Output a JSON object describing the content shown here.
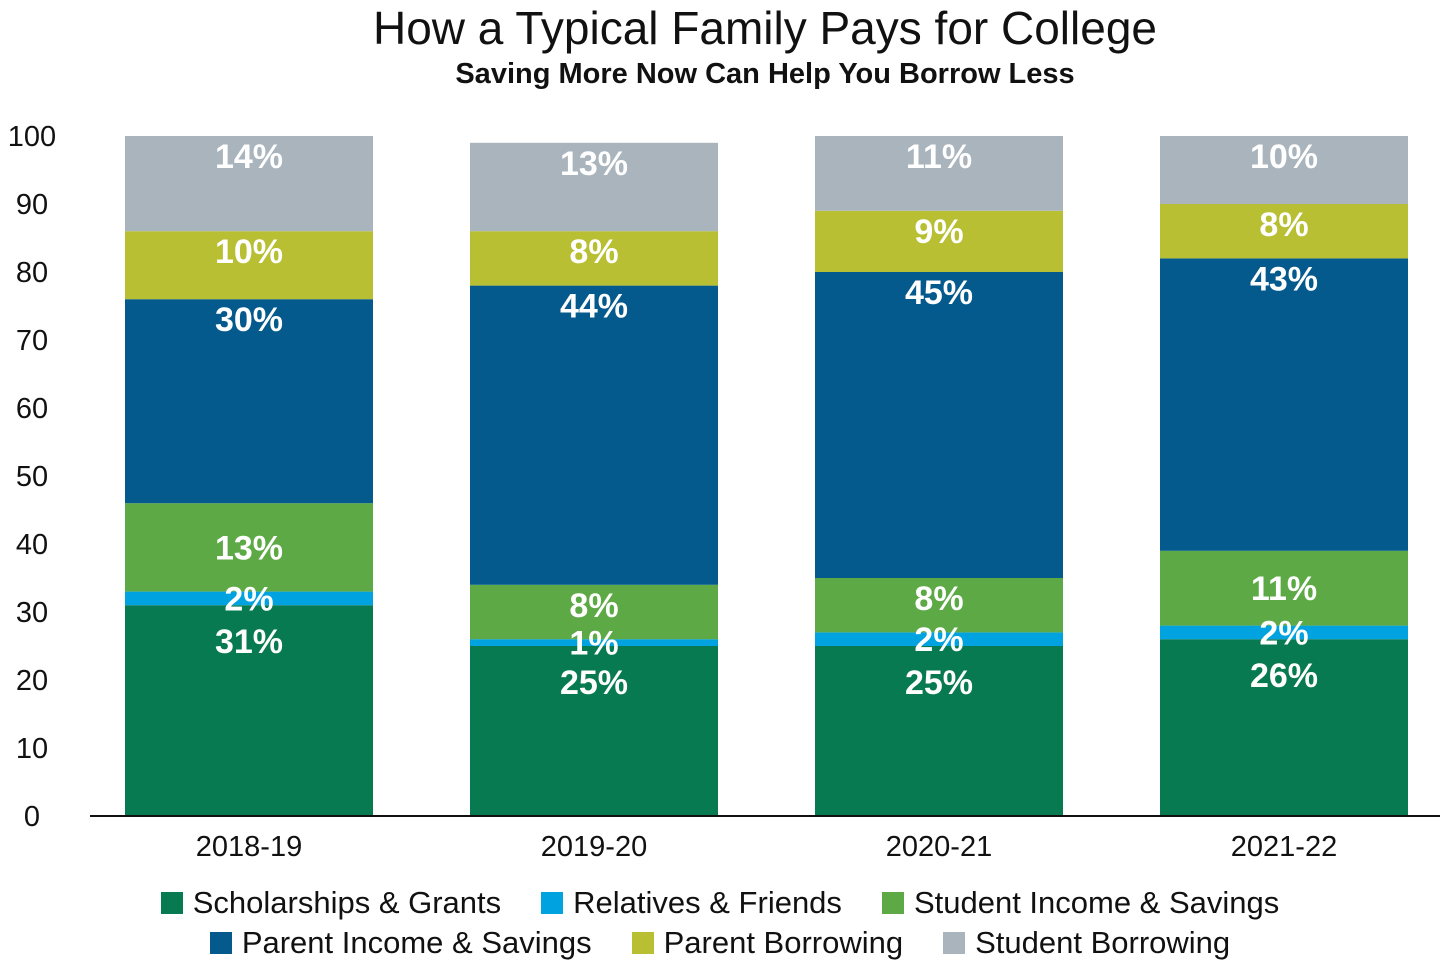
{
  "chart_data": {
    "type": "bar",
    "stacked": true,
    "title": "How a Typical Family Pays for College",
    "subtitle": "Saving More Now Can Help You Borrow Less",
    "categories": [
      "2018-19",
      "2019-20",
      "2020-21",
      "2021-22"
    ],
    "ylim": [
      0,
      100
    ],
    "yticks": [
      "0",
      "10",
      "20",
      "30",
      "40",
      "50",
      "60",
      "70",
      "80",
      "90",
      "100"
    ],
    "grid": false,
    "legend_position": "bottom",
    "series": [
      {
        "name": "Scholarships & Grants",
        "color": "#077a51",
        "values": [
          31,
          25,
          25,
          26
        ],
        "labels": [
          "31%",
          "25%",
          "25%",
          "26%"
        ]
      },
      {
        "name": "Relatives & Friends",
        "color": "#00a3e0",
        "values": [
          2,
          1,
          2,
          2
        ],
        "labels": [
          "2%",
          "1%",
          "2%",
          "2%"
        ]
      },
      {
        "name": "Student Income & Savings",
        "color": "#5da945",
        "values": [
          13,
          8,
          8,
          11
        ],
        "labels": [
          "13%",
          "8%",
          "8%",
          "11%"
        ]
      },
      {
        "name": "Parent Income & Savings",
        "color": "#045a8d",
        "values": [
          30,
          44,
          45,
          43
        ],
        "labels": [
          "30%",
          "44%",
          "45%",
          "43%"
        ]
      },
      {
        "name": "Parent Borrowing",
        "color": "#b8bf33",
        "values": [
          10,
          8,
          9,
          8
        ],
        "labels": [
          "10%",
          "8%",
          "9%",
          "8%"
        ]
      },
      {
        "name": "Student Borrowing",
        "color": "#a9b4bd",
        "values": [
          14,
          13,
          11,
          10
        ],
        "labels": [
          "14%",
          "13%",
          "11%",
          "10%"
        ]
      }
    ]
  }
}
